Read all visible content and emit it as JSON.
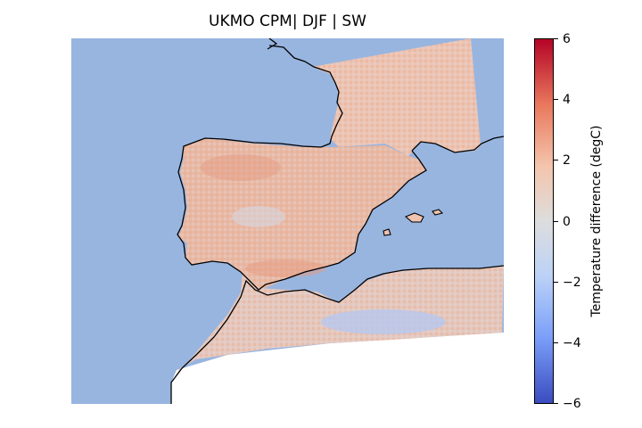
{
  "title": "UKMO CPM| DJF | SW",
  "colorbar": {
    "label": "Temperature difference (degC)",
    "ticks": [
      "6",
      "4",
      "2",
      "0",
      "−2",
      "−4",
      "−6"
    ],
    "min": -6,
    "max": 6,
    "colormap": "coolwarm",
    "colors": {
      "low": "#3b4cc0",
      "mid": "#dddddd",
      "high": "#b40426"
    }
  },
  "map": {
    "ocean_color": "#98b5e0",
    "coastline_color": "#000000",
    "region": "Iberian Peninsula, southern France, northern Morocco and Algeria"
  }
}
